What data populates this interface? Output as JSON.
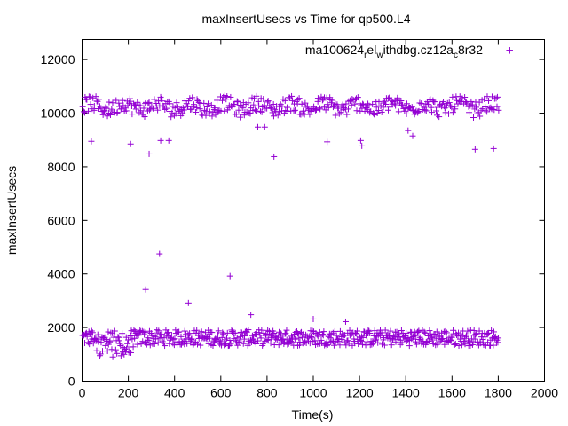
{
  "chart_data": {
    "type": "scatter",
    "title": "maxInsertUsecs vs Time for qp500.L4",
    "xlabel": "Time(s)",
    "ylabel": "maxInsertUsecs",
    "xlim": [
      0,
      2000
    ],
    "ylim": [
      0,
      12750
    ],
    "xticks": [
      0,
      200,
      400,
      600,
      800,
      1000,
      1200,
      1400,
      1600,
      1800,
      2000
    ],
    "yticks": [
      0,
      2000,
      4000,
      6000,
      8000,
      10000,
      12000
    ],
    "legend": {
      "position": "top-right",
      "label_parts": [
        "ma100624",
        "r",
        "el",
        "w",
        "ithdbg.cz12a",
        "c",
        "8r32"
      ]
    },
    "series": [
      {
        "name": "ma100624_rel_withdbg.cz12a_c8r32",
        "color": "#9400d3",
        "marker": "+",
        "bands": [
          {
            "x_start": 0,
            "x_end": 1800,
            "step": 3,
            "base": 1620,
            "spread": 300
          },
          {
            "x_start": 0,
            "x_end": 1800,
            "step": 4,
            "base": 10250,
            "spread": 300
          }
        ],
        "dip_region": {
          "x_start": 50,
          "x_end": 220,
          "y_min": 900,
          "y_max": 1300
        },
        "outliers": [
          {
            "x": 40,
            "y": 8950
          },
          {
            "x": 210,
            "y": 8850
          },
          {
            "x": 290,
            "y": 8480
          },
          {
            "x": 340,
            "y": 8980
          },
          {
            "x": 375,
            "y": 8980
          },
          {
            "x": 760,
            "y": 9480
          },
          {
            "x": 790,
            "y": 9480
          },
          {
            "x": 830,
            "y": 8380
          },
          {
            "x": 1060,
            "y": 8930
          },
          {
            "x": 1205,
            "y": 8980
          },
          {
            "x": 1210,
            "y": 8780
          },
          {
            "x": 1410,
            "y": 9350
          },
          {
            "x": 1430,
            "y": 9150
          },
          {
            "x": 1700,
            "y": 8650
          },
          {
            "x": 1780,
            "y": 8680
          },
          {
            "x": 1850,
            "y": 12350
          },
          {
            "x": 275,
            "y": 3420
          },
          {
            "x": 335,
            "y": 4750
          },
          {
            "x": 460,
            "y": 2920
          },
          {
            "x": 640,
            "y": 3920
          },
          {
            "x": 730,
            "y": 2480
          },
          {
            "x": 1000,
            "y": 2320
          },
          {
            "x": 1140,
            "y": 2220
          }
        ]
      }
    ]
  }
}
